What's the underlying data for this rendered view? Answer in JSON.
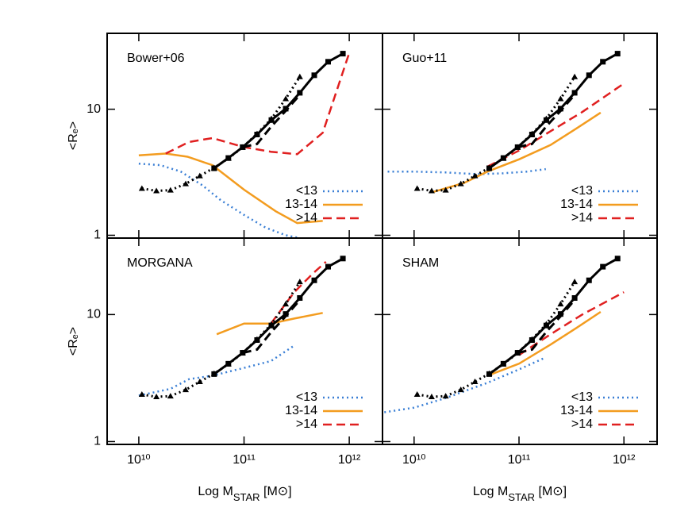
{
  "chart_data": [
    {
      "type": "line",
      "title": "Bower+06",
      "ylabel": "<Rₑ>",
      "log_x": true,
      "log_y": true,
      "xlim": [
        5000000000.0,
        2070000000000.0
      ],
      "ylim": [
        0.95,
        40
      ],
      "xticks": [
        10000000000.0,
        100000000000.0,
        1000000000000.0
      ],
      "yticks": [
        1,
        10
      ],
      "show_xtick_labels": false,
      "show_ytick_labels": true,
      "series": [
        {
          "name": "<13",
          "color": "#3a7fd5",
          "style": "dotted",
          "marker": "none",
          "x": [
            10000000000.0,
            16000000000.0,
            25000000000.0,
            40000000000.0,
            60000000000.0,
            100000000000.0,
            160000000000.0,
            250000000000.0,
            320000000000.0
          ],
          "values": [
            3.7,
            3.6,
            3.2,
            2.5,
            1.9,
            1.45,
            1.15,
            1.0,
            0.96
          ]
        },
        {
          "name": "13-14",
          "color": "#f39c1f",
          "style": "solid",
          "marker": "none",
          "x": [
            10000000000.0,
            18000000000.0,
            29000000000.0,
            50000000000.0,
            100000000000.0,
            200000000000.0,
            320000000000.0,
            560000000000.0
          ],
          "values": [
            4.3,
            4.45,
            4.2,
            3.6,
            2.3,
            1.55,
            1.25,
            1.3
          ]
        },
        {
          "name": ">14",
          "color": "#e02020",
          "style": "dashed",
          "marker": "none",
          "x": [
            18000000000.0,
            30000000000.0,
            50000000000.0,
            100000000000.0,
            180000000000.0,
            320000000000.0,
            560000000000.0,
            1000000000000.0
          ],
          "values": [
            4.45,
            5.5,
            5.9,
            5.0,
            4.6,
            4.4,
            6.5,
            28
          ]
        },
        {
          "color": "#000000",
          "style": "dotted",
          "marker": "triangle",
          "x": [
            10700000000.0,
            14700000000.0,
            20000000000.0,
            27900000000.0,
            38000000000.0,
            52000000000.0,
            71000000000.0,
            97000000000.0,
            133000000000.0,
            182000000000.0,
            249000000000.0,
            339000000000.0
          ],
          "values": [
            2.35,
            2.25,
            2.28,
            2.56,
            2.96,
            3.43,
            4.07,
            4.99,
            6.38,
            8.4,
            12.1,
            18.1
          ]
        },
        {
          "color": "#000000",
          "style": "solid",
          "marker": "square",
          "x": [
            52000000000.0,
            71000000000.0,
            97000000000.0,
            133000000000.0,
            182000000000.0,
            249000000000.0,
            339000000000.0,
            465000000000.0,
            630000000000.0,
            870000000000.0
          ],
          "values": [
            3.4,
            4.1,
            5.0,
            6.3,
            8.2,
            10.1,
            13.5,
            18.6,
            23.8,
            27.6
          ]
        },
        {
          "color": "#000000",
          "style": "dashed",
          "marker": "none",
          "x": [
            97000000000.0,
            133000000000.0,
            182000000000.0,
            249000000000.0,
            339000000000.0
          ],
          "values": [
            5.0,
            5.3,
            7.3,
            9.7,
            13.0
          ]
        }
      ]
    },
    {
      "type": "line",
      "title": "Guo+11",
      "log_x": true,
      "log_y": true,
      "xlim": [
        5000000000.0,
        2070000000000.0
      ],
      "ylim": [
        0.95,
        40
      ],
      "xticks": [
        10000000000.0,
        100000000000.0,
        1000000000000.0
      ],
      "yticks": [
        1,
        10
      ],
      "show_xtick_labels": false,
      "show_ytick_labels": false,
      "series": [
        {
          "name": "<13",
          "color": "#3a7fd5",
          "style": "dotted",
          "marker": "none",
          "x": [
            5600000000.0,
            10000000000.0,
            20000000000.0,
            40000000000.0,
            70000000000.0,
            120000000000.0,
            180000000000.0
          ],
          "values": [
            3.2,
            3.2,
            3.15,
            3.05,
            3.1,
            3.2,
            3.35
          ]
        },
        {
          "name": "13-14",
          "color": "#f39c1f",
          "style": "solid",
          "marker": "none",
          "x": [
            15000000000.0,
            30000000000.0,
            50000000000.0,
            100000000000.0,
            200000000000.0,
            350000000000.0,
            600000000000.0
          ],
          "values": [
            2.2,
            2.6,
            3.2,
            4.0,
            5.2,
            7.0,
            9.4
          ]
        },
        {
          "name": ">14",
          "color": "#e02020",
          "style": "dashed",
          "marker": "none",
          "x": [
            50000000000.0,
            100000000000.0,
            200000000000.0,
            400000000000.0,
            1000000000000.0
          ],
          "values": [
            3.5,
            4.7,
            6.7,
            9.5,
            16
          ]
        },
        {
          "color": "#000000",
          "style": "dotted",
          "marker": "triangle",
          "x": [
            10700000000.0,
            14700000000.0,
            20000000000.0,
            27900000000.0,
            38000000000.0,
            52000000000.0,
            71000000000.0,
            97000000000.0,
            133000000000.0,
            182000000000.0,
            249000000000.0,
            339000000000.0
          ],
          "values": [
            2.35,
            2.25,
            2.28,
            2.56,
            2.96,
            3.43,
            4.07,
            4.99,
            6.38,
            8.4,
            12.1,
            18.1
          ]
        },
        {
          "color": "#000000",
          "style": "solid",
          "marker": "square",
          "x": [
            52000000000.0,
            71000000000.0,
            97000000000.0,
            133000000000.0,
            182000000000.0,
            249000000000.0,
            339000000000.0,
            465000000000.0,
            630000000000.0,
            870000000000.0
          ],
          "values": [
            3.4,
            4.1,
            5.0,
            6.3,
            8.2,
            10.1,
            13.5,
            18.6,
            23.8,
            27.6
          ]
        },
        {
          "color": "#000000",
          "style": "dashed",
          "marker": "none",
          "x": [
            97000000000.0,
            133000000000.0,
            182000000000.0,
            249000000000.0,
            339000000000.0
          ],
          "values": [
            5.0,
            5.3,
            7.3,
            9.7,
            13.0
          ]
        }
      ]
    },
    {
      "type": "line",
      "title": "MORGANA",
      "ylabel": "<Rₑ>",
      "xlabel": [
        "Log M",
        "STAR",
        " [M⊙]"
      ],
      "log_x": true,
      "log_y": true,
      "xlim": [
        5000000000.0,
        2070000000000.0
      ],
      "ylim": [
        0.95,
        40
      ],
      "xticks": [
        {
          "value": 10000000000.0,
          "label": "10¹⁰"
        },
        {
          "value": 100000000000.0,
          "label": "10¹¹"
        },
        {
          "value": 1000000000000.0,
          "label": "10¹²"
        }
      ],
      "yticks": [
        1,
        10
      ],
      "show_xtick_labels": true,
      "show_ytick_labels": true,
      "series": [
        {
          "name": "<13",
          "color": "#3a7fd5",
          "style": "dotted",
          "marker": "none",
          "x": [
            10000000000.0,
            20000000000.0,
            30000000000.0,
            50000000000.0,
            100000000000.0,
            180000000000.0,
            300000000000.0
          ],
          "values": [
            2.3,
            2.6,
            3.1,
            3.3,
            3.8,
            4.3,
            5.7
          ]
        },
        {
          "name": "13-14",
          "color": "#f39c1f",
          "style": "solid",
          "marker": "none",
          "x": [
            55000000000.0,
            100000000000.0,
            180000000000.0,
            300000000000.0,
            560000000000.0
          ],
          "values": [
            7.0,
            8.5,
            8.5,
            9.3,
            10.3
          ]
        },
        {
          "name": ">14",
          "color": "#e02020",
          "style": "dashed",
          "marker": "none",
          "x": [
            180000000000.0,
            300000000000.0,
            450000000000.0,
            600000000000.0
          ],
          "values": [
            8.5,
            15,
            21,
            26
          ]
        },
        {
          "color": "#000000",
          "style": "dotted",
          "marker": "triangle",
          "x": [
            10700000000.0,
            14700000000.0,
            20000000000.0,
            27900000000.0,
            38000000000.0,
            52000000000.0,
            71000000000.0,
            97000000000.0,
            133000000000.0,
            182000000000.0,
            249000000000.0,
            339000000000.0
          ],
          "values": [
            2.35,
            2.25,
            2.28,
            2.56,
            2.96,
            3.43,
            4.07,
            4.99,
            6.38,
            8.4,
            12.1,
            18.1
          ]
        },
        {
          "color": "#000000",
          "style": "solid",
          "marker": "square",
          "x": [
            52000000000.0,
            71000000000.0,
            97000000000.0,
            133000000000.0,
            182000000000.0,
            249000000000.0,
            339000000000.0,
            465000000000.0,
            630000000000.0,
            870000000000.0
          ],
          "values": [
            3.4,
            4.1,
            5.0,
            6.3,
            8.2,
            10.1,
            13.5,
            18.6,
            23.8,
            27.6
          ]
        },
        {
          "color": "#000000",
          "style": "dashed",
          "marker": "none",
          "x": [
            97000000000.0,
            133000000000.0,
            182000000000.0,
            249000000000.0,
            339000000000.0
          ],
          "values": [
            5.0,
            5.3,
            7.3,
            9.7,
            13.0
          ]
        }
      ]
    },
    {
      "type": "line",
      "title": "SHAM",
      "xlabel": [
        "Log M",
        "STAR",
        " [M⊙]"
      ],
      "log_x": true,
      "log_y": true,
      "xlim": [
        5000000000.0,
        2070000000000.0
      ],
      "ylim": [
        0.95,
        40
      ],
      "xticks": [
        {
          "value": 10000000000.0,
          "label": "10¹⁰"
        },
        {
          "value": 100000000000.0,
          "label": "10¹¹"
        },
        {
          "value": 1000000000000.0,
          "label": "10¹²"
        }
      ],
      "yticks": [
        1,
        10
      ],
      "show_xtick_labels": true,
      "show_ytick_labels": false,
      "series": [
        {
          "name": "<13",
          "color": "#3a7fd5",
          "style": "dotted",
          "marker": "none",
          "x": [
            5200000000.0,
            10000000000.0,
            20000000000.0,
            50000000000.0,
            100000000000.0,
            180000000000.0
          ],
          "values": [
            1.7,
            1.85,
            2.2,
            2.9,
            3.7,
            4.6
          ]
        },
        {
          "name": "13-14",
          "color": "#f39c1f",
          "style": "solid",
          "marker": "none",
          "x": [
            50000000000.0,
            100000000000.0,
            200000000000.0,
            350000000000.0,
            600000000000.0
          ],
          "values": [
            3.3,
            4.1,
            5.8,
            7.8,
            10.5
          ]
        },
        {
          "name": ">14",
          "color": "#e02020",
          "style": "dashed",
          "marker": "none",
          "x": [
            100000000000.0,
            200000000000.0,
            400000000000.0,
            1000000000000.0
          ],
          "values": [
            4.8,
            7.0,
            10,
            15
          ]
        },
        {
          "color": "#000000",
          "style": "dotted",
          "marker": "triangle",
          "x": [
            10700000000.0,
            14700000000.0,
            20000000000.0,
            27900000000.0,
            38000000000.0,
            52000000000.0,
            71000000000.0,
            97000000000.0,
            133000000000.0,
            182000000000.0,
            249000000000.0,
            339000000000.0
          ],
          "values": [
            2.35,
            2.25,
            2.28,
            2.56,
            2.96,
            3.43,
            4.07,
            4.99,
            6.38,
            8.4,
            12.1,
            18.1
          ]
        },
        {
          "color": "#000000",
          "style": "solid",
          "marker": "square",
          "x": [
            52000000000.0,
            71000000000.0,
            97000000000.0,
            133000000000.0,
            182000000000.0,
            249000000000.0,
            339000000000.0,
            465000000000.0,
            630000000000.0,
            870000000000.0
          ],
          "values": [
            3.4,
            4.1,
            5.0,
            6.3,
            8.2,
            10.1,
            13.5,
            18.6,
            23.8,
            27.6
          ]
        },
        {
          "color": "#000000",
          "style": "dashed",
          "marker": "none",
          "x": [
            97000000000.0,
            133000000000.0,
            182000000000.0,
            249000000000.0,
            339000000000.0
          ],
          "values": [
            5.0,
            5.3,
            7.3,
            9.7,
            13.0
          ]
        }
      ]
    }
  ]
}
